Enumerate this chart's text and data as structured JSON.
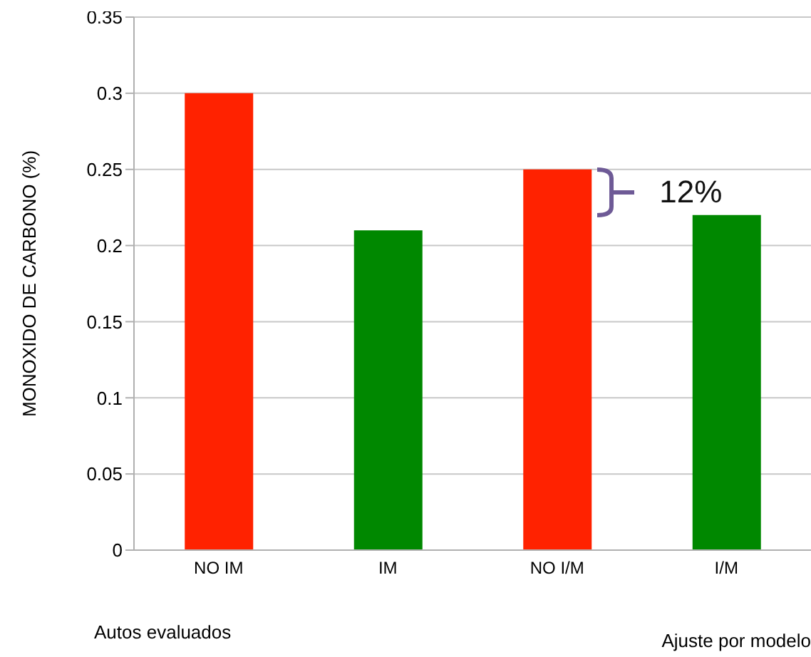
{
  "chart_data": {
    "type": "bar",
    "ylabel": "MONOXIDO DE CARBONO (%)",
    "categories": [
      "NO IM",
      "IM",
      "NO I/M",
      "I/M"
    ],
    "values": [
      0.3,
      0.21,
      0.25,
      0.22
    ],
    "colors": [
      "#ff2200",
      "#008800",
      "#ff2200",
      "#008800"
    ],
    "ylim": [
      0,
      0.35
    ],
    "yticks": [
      0,
      0.05,
      0.1,
      0.15,
      0.2,
      0.25,
      0.3,
      0.35
    ],
    "grid": "y",
    "annotations": [
      "12%",
      "Autos evaluados",
      "Ajuste por modelo"
    ]
  }
}
